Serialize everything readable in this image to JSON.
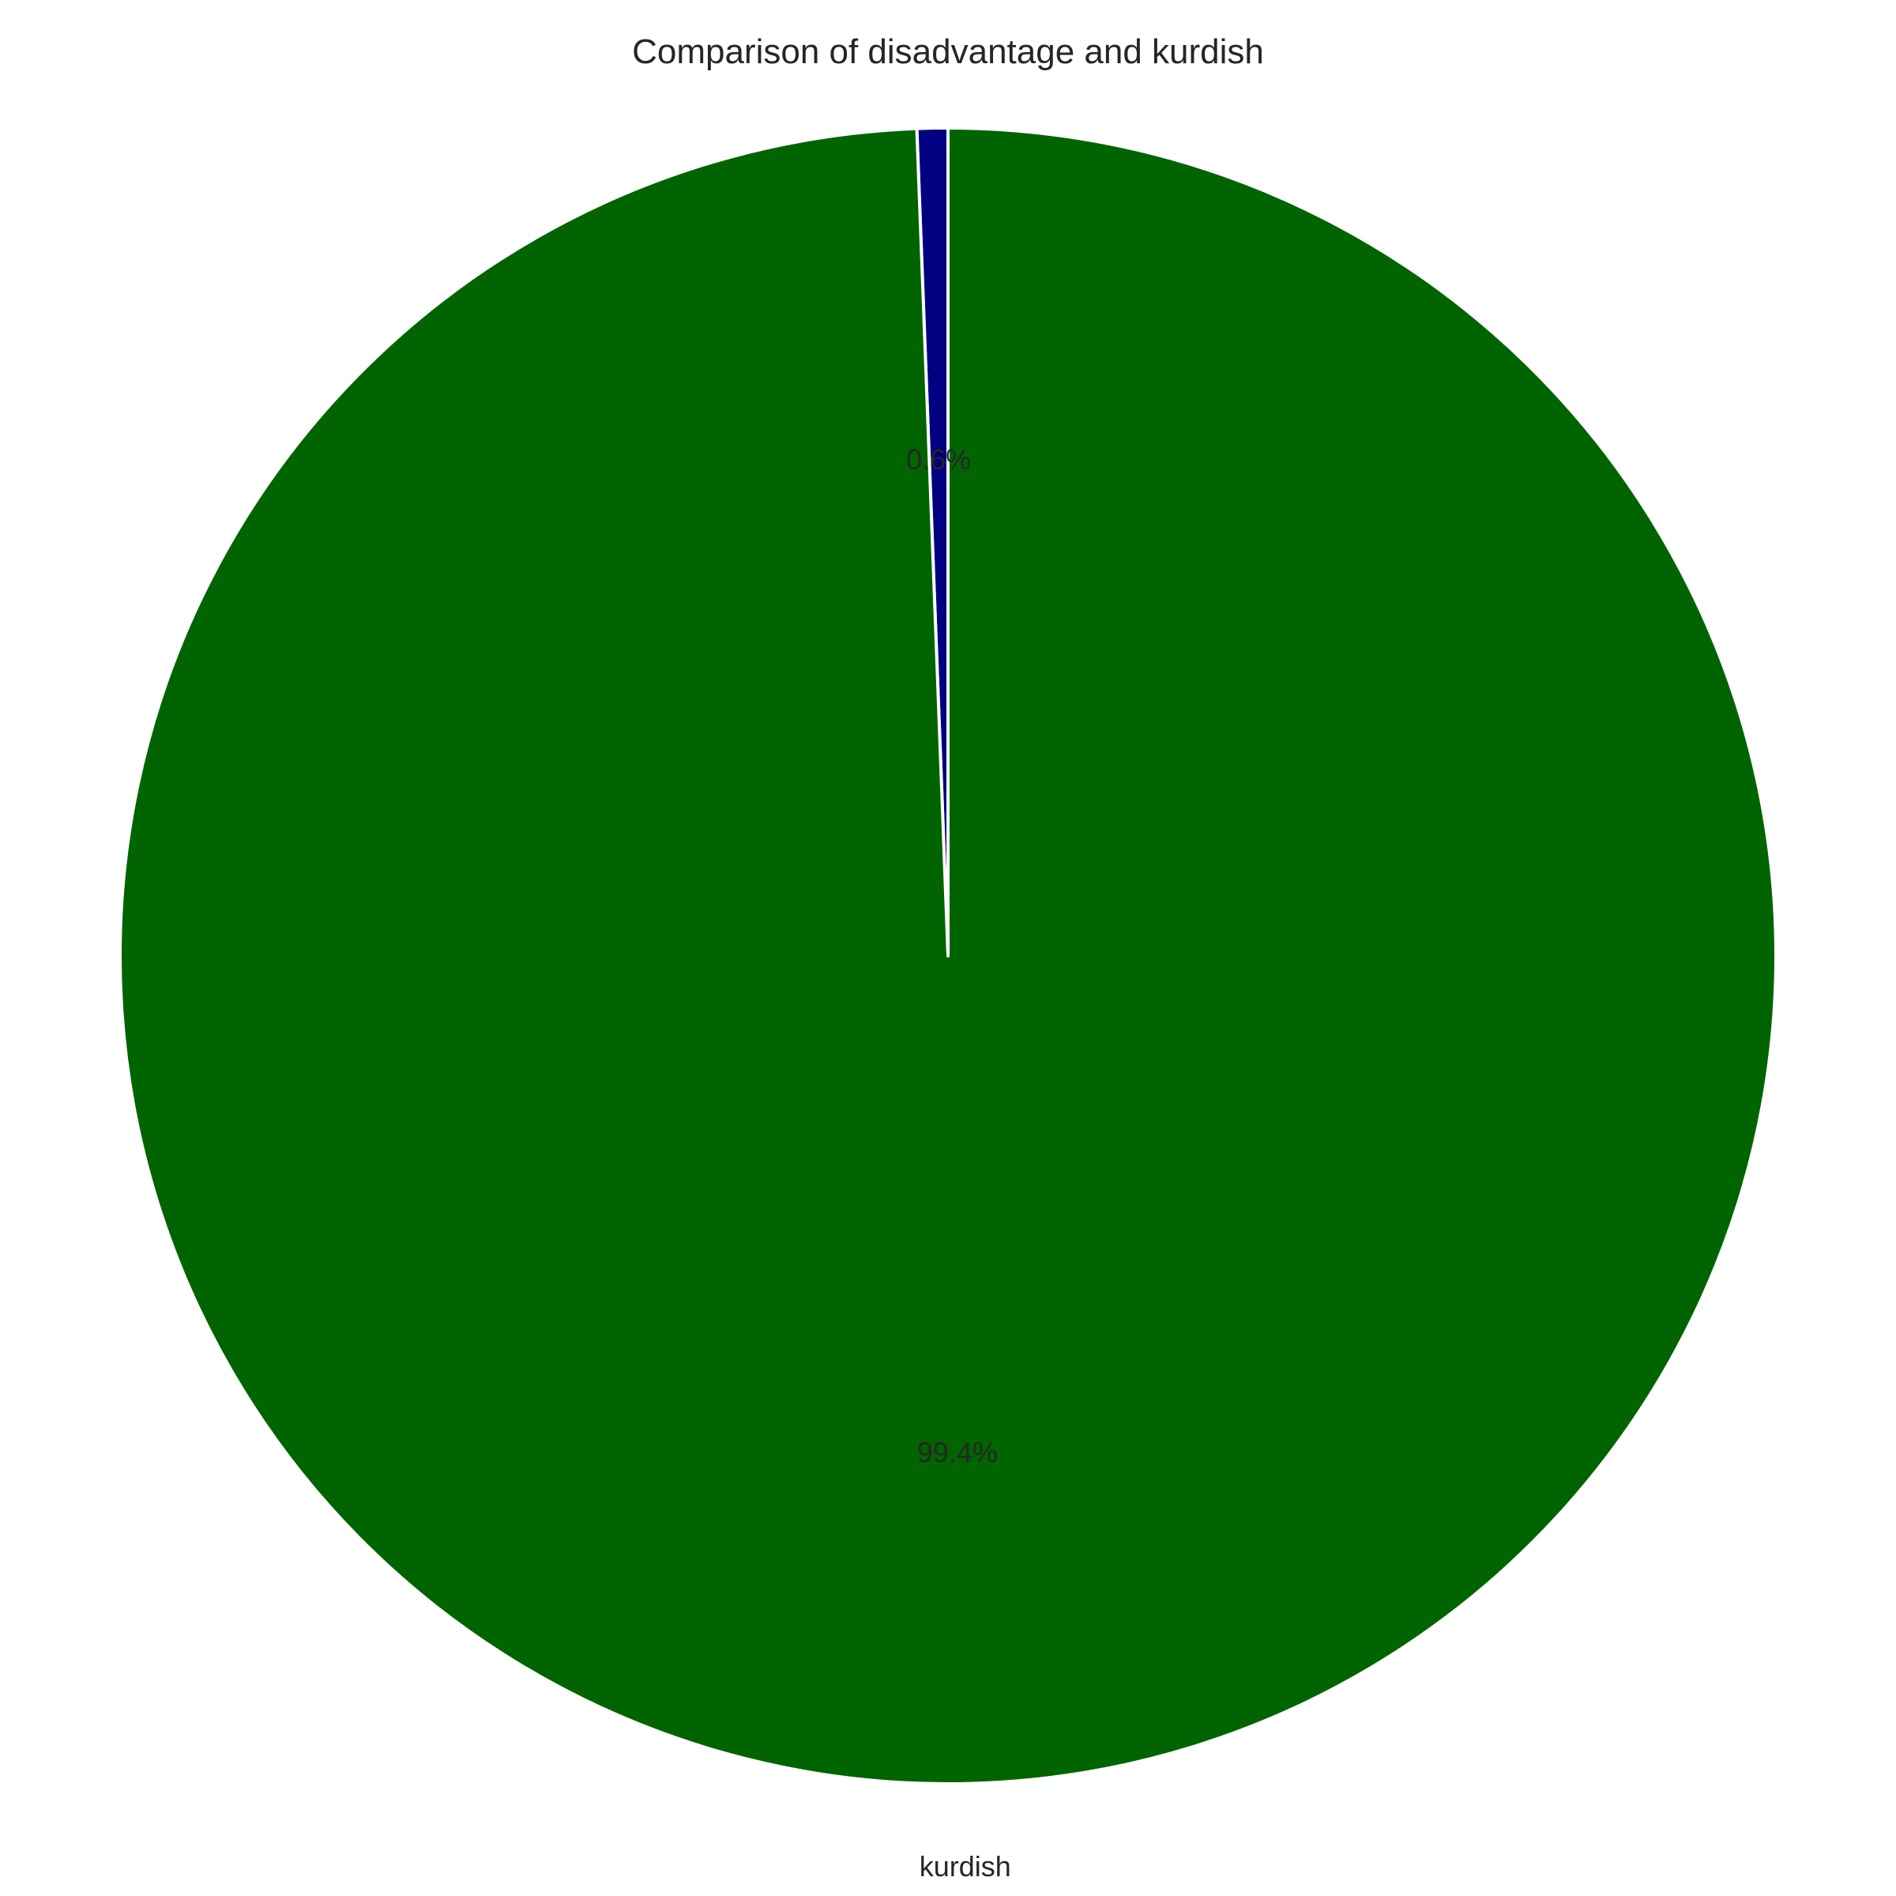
{
  "chart_data": {
    "type": "pie",
    "title": "Comparison of disadvantage and kurdish",
    "categories": [
      "disadvantage",
      "kurdish"
    ],
    "values": [
      0.6,
      99.4
    ],
    "percent_labels": [
      "0.6%",
      "99.4%"
    ],
    "visible_category_labels": [
      "",
      "kurdish"
    ],
    "colors": [
      "#000080",
      "#006400"
    ],
    "start_angle_deg": 90,
    "direction": "counterclockwise",
    "legend": "none"
  }
}
